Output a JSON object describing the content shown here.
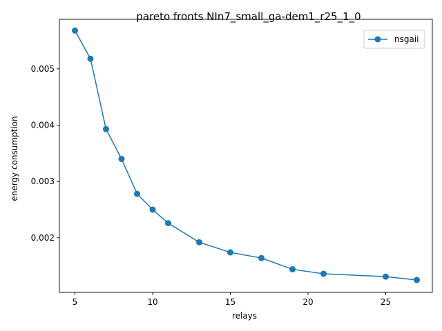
{
  "chart_data": {
    "type": "line",
    "title": "pareto fronts NIn7_small_ga-dem1_r25_1_0",
    "xlabel": "relays",
    "ylabel": "energy consumption",
    "xlim": [
      4.0,
      28.0
    ],
    "ylim": [
      0.00103,
      0.00588
    ],
    "x_ticks": [
      5,
      10,
      15,
      20,
      25
    ],
    "x_tick_labels": [
      "5",
      "10",
      "15",
      "20",
      "25"
    ],
    "y_ticks": [
      0.002,
      0.003,
      0.004,
      0.005
    ],
    "y_tick_labels": [
      "0.002",
      "0.003",
      "0.004",
      "0.005"
    ],
    "grid": false,
    "legend_position": "top-right",
    "series": [
      {
        "name": "nsgaii",
        "color": "#1f77b4",
        "marker": "circle",
        "x": [
          5,
          6,
          7,
          8,
          9,
          10,
          11,
          13,
          15,
          17,
          19,
          21,
          25,
          27
        ],
        "y": [
          0.00568,
          0.00518,
          0.00393,
          0.0034,
          0.00278,
          0.0025,
          0.00226,
          0.00192,
          0.00174,
          0.00164,
          0.00144,
          0.00136,
          0.00131,
          0.00125
        ]
      }
    ]
  }
}
